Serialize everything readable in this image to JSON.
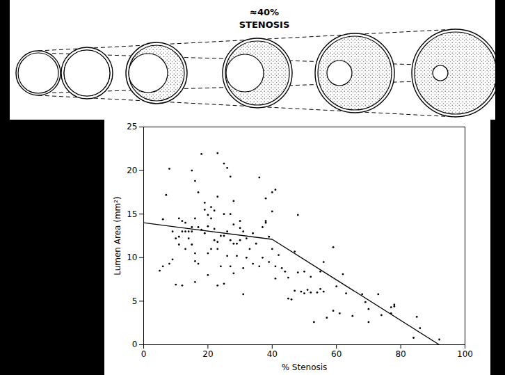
{
  "diagram": {
    "title_lines": [
      "≈40%",
      "STENOSIS"
    ]
  },
  "chart_data": {
    "type": "scatter",
    "x_label": "% Stenosis",
    "y_label": "Lumen Area (mm²)",
    "xlim": [
      0,
      100
    ],
    "xticks": [
      0,
      20,
      40,
      60,
      80,
      100
    ],
    "ylim": [
      0,
      25
    ],
    "yticks": [
      0,
      5,
      10,
      15,
      20,
      25
    ],
    "series": [
      {
        "type": "scatter",
        "marker": "dot",
        "color": "#000000",
        "x": [
          5,
          6,
          6,
          7,
          8,
          8,
          9,
          9,
          10,
          10,
          11,
          11,
          11,
          12,
          12,
          12,
          13,
          13,
          13,
          14,
          14,
          15,
          15,
          15,
          15,
          16,
          16,
          16,
          16,
          16,
          17,
          17,
          17,
          18,
          18,
          19,
          19,
          19,
          20,
          20,
          20,
          20,
          21,
          21,
          21,
          22,
          22,
          22,
          23,
          23,
          23,
          23,
          23,
          24,
          24,
          25,
          25,
          25,
          25,
          26,
          26,
          26,
          27,
          27,
          27,
          27,
          28,
          28,
          28,
          28,
          29,
          29,
          30,
          30,
          30,
          31,
          31,
          31,
          32,
          32,
          33,
          34,
          34,
          35,
          36,
          36,
          37,
          37,
          38,
          38,
          38,
          39,
          39,
          40,
          40,
          40,
          41,
          41,
          41,
          42,
          43,
          44,
          45,
          45,
          46,
          47,
          47,
          48,
          48,
          49,
          50,
          50,
          51,
          52,
          52,
          53,
          54,
          55,
          55,
          56,
          56,
          57,
          59,
          59,
          60,
          61,
          62,
          63,
          65,
          68,
          69,
          70,
          70,
          73,
          74,
          77,
          77,
          78,
          78,
          84,
          85,
          86,
          92
        ],
        "values": [
          8.5,
          14.4,
          9.0,
          17.2,
          20.2,
          9.3,
          13.0,
          9.8,
          12.2,
          6.9,
          12.4,
          14.5,
          11.5,
          14.2,
          13.0,
          6.8,
          14.0,
          13.0,
          11.0,
          13.0,
          12.2,
          13.5,
          13.0,
          20.0,
          11.5,
          18.8,
          14.5,
          10.5,
          9.6,
          7.2,
          13.5,
          9.3,
          17.5,
          21.9,
          13.2,
          12.8,
          16.3,
          15.5,
          14.9,
          13.6,
          10.5,
          8.0,
          14.5,
          11.0,
          15.8,
          13.3,
          12.0,
          15.4,
          22.0,
          17.0,
          11.8,
          11.0,
          6.8,
          12.5,
          9.0,
          20.8,
          15.0,
          12.5,
          7.0,
          20.3,
          13.0,
          10.2,
          19.3,
          15.0,
          12.0,
          9.0,
          16.5,
          13.8,
          11.6,
          8.2,
          11.6,
          10.2,
          13.4,
          12.0,
          14.2,
          13.0,
          5.8,
          8.8,
          12.2,
          10.0,
          11.0,
          12.8,
          9.3,
          11.6,
          19.2,
          9.0,
          13.5,
          10.0,
          14.2,
          16.8,
          14.0,
          9.5,
          12.4,
          17.5,
          15.3,
          11.0,
          17.8,
          7.6,
          9.0,
          10.3,
          8.8,
          8.4,
          5.3,
          7.7,
          5.2,
          10.7,
          6.2,
          14.9,
          8.3,
          6.1,
          5.9,
          8.4,
          6.3,
          7.8,
          6.0,
          2.6,
          6.0,
          8.4,
          6.4,
          9.5,
          6.1,
          3.1,
          11.2,
          3.9,
          6.7,
          3.6,
          8.1,
          5.9,
          3.3,
          5.8,
          4.9,
          4.1,
          2.6,
          5.8,
          3.4,
          4.3,
          3.6,
          4.6,
          4.4,
          0.8,
          3.2,
          1.9,
          0.6
        ]
      },
      {
        "type": "line",
        "line_style": "solid",
        "color": "#000000",
        "x": [
          0,
          40,
          92
        ],
        "values": [
          14,
          12.1,
          0
        ]
      }
    ]
  }
}
